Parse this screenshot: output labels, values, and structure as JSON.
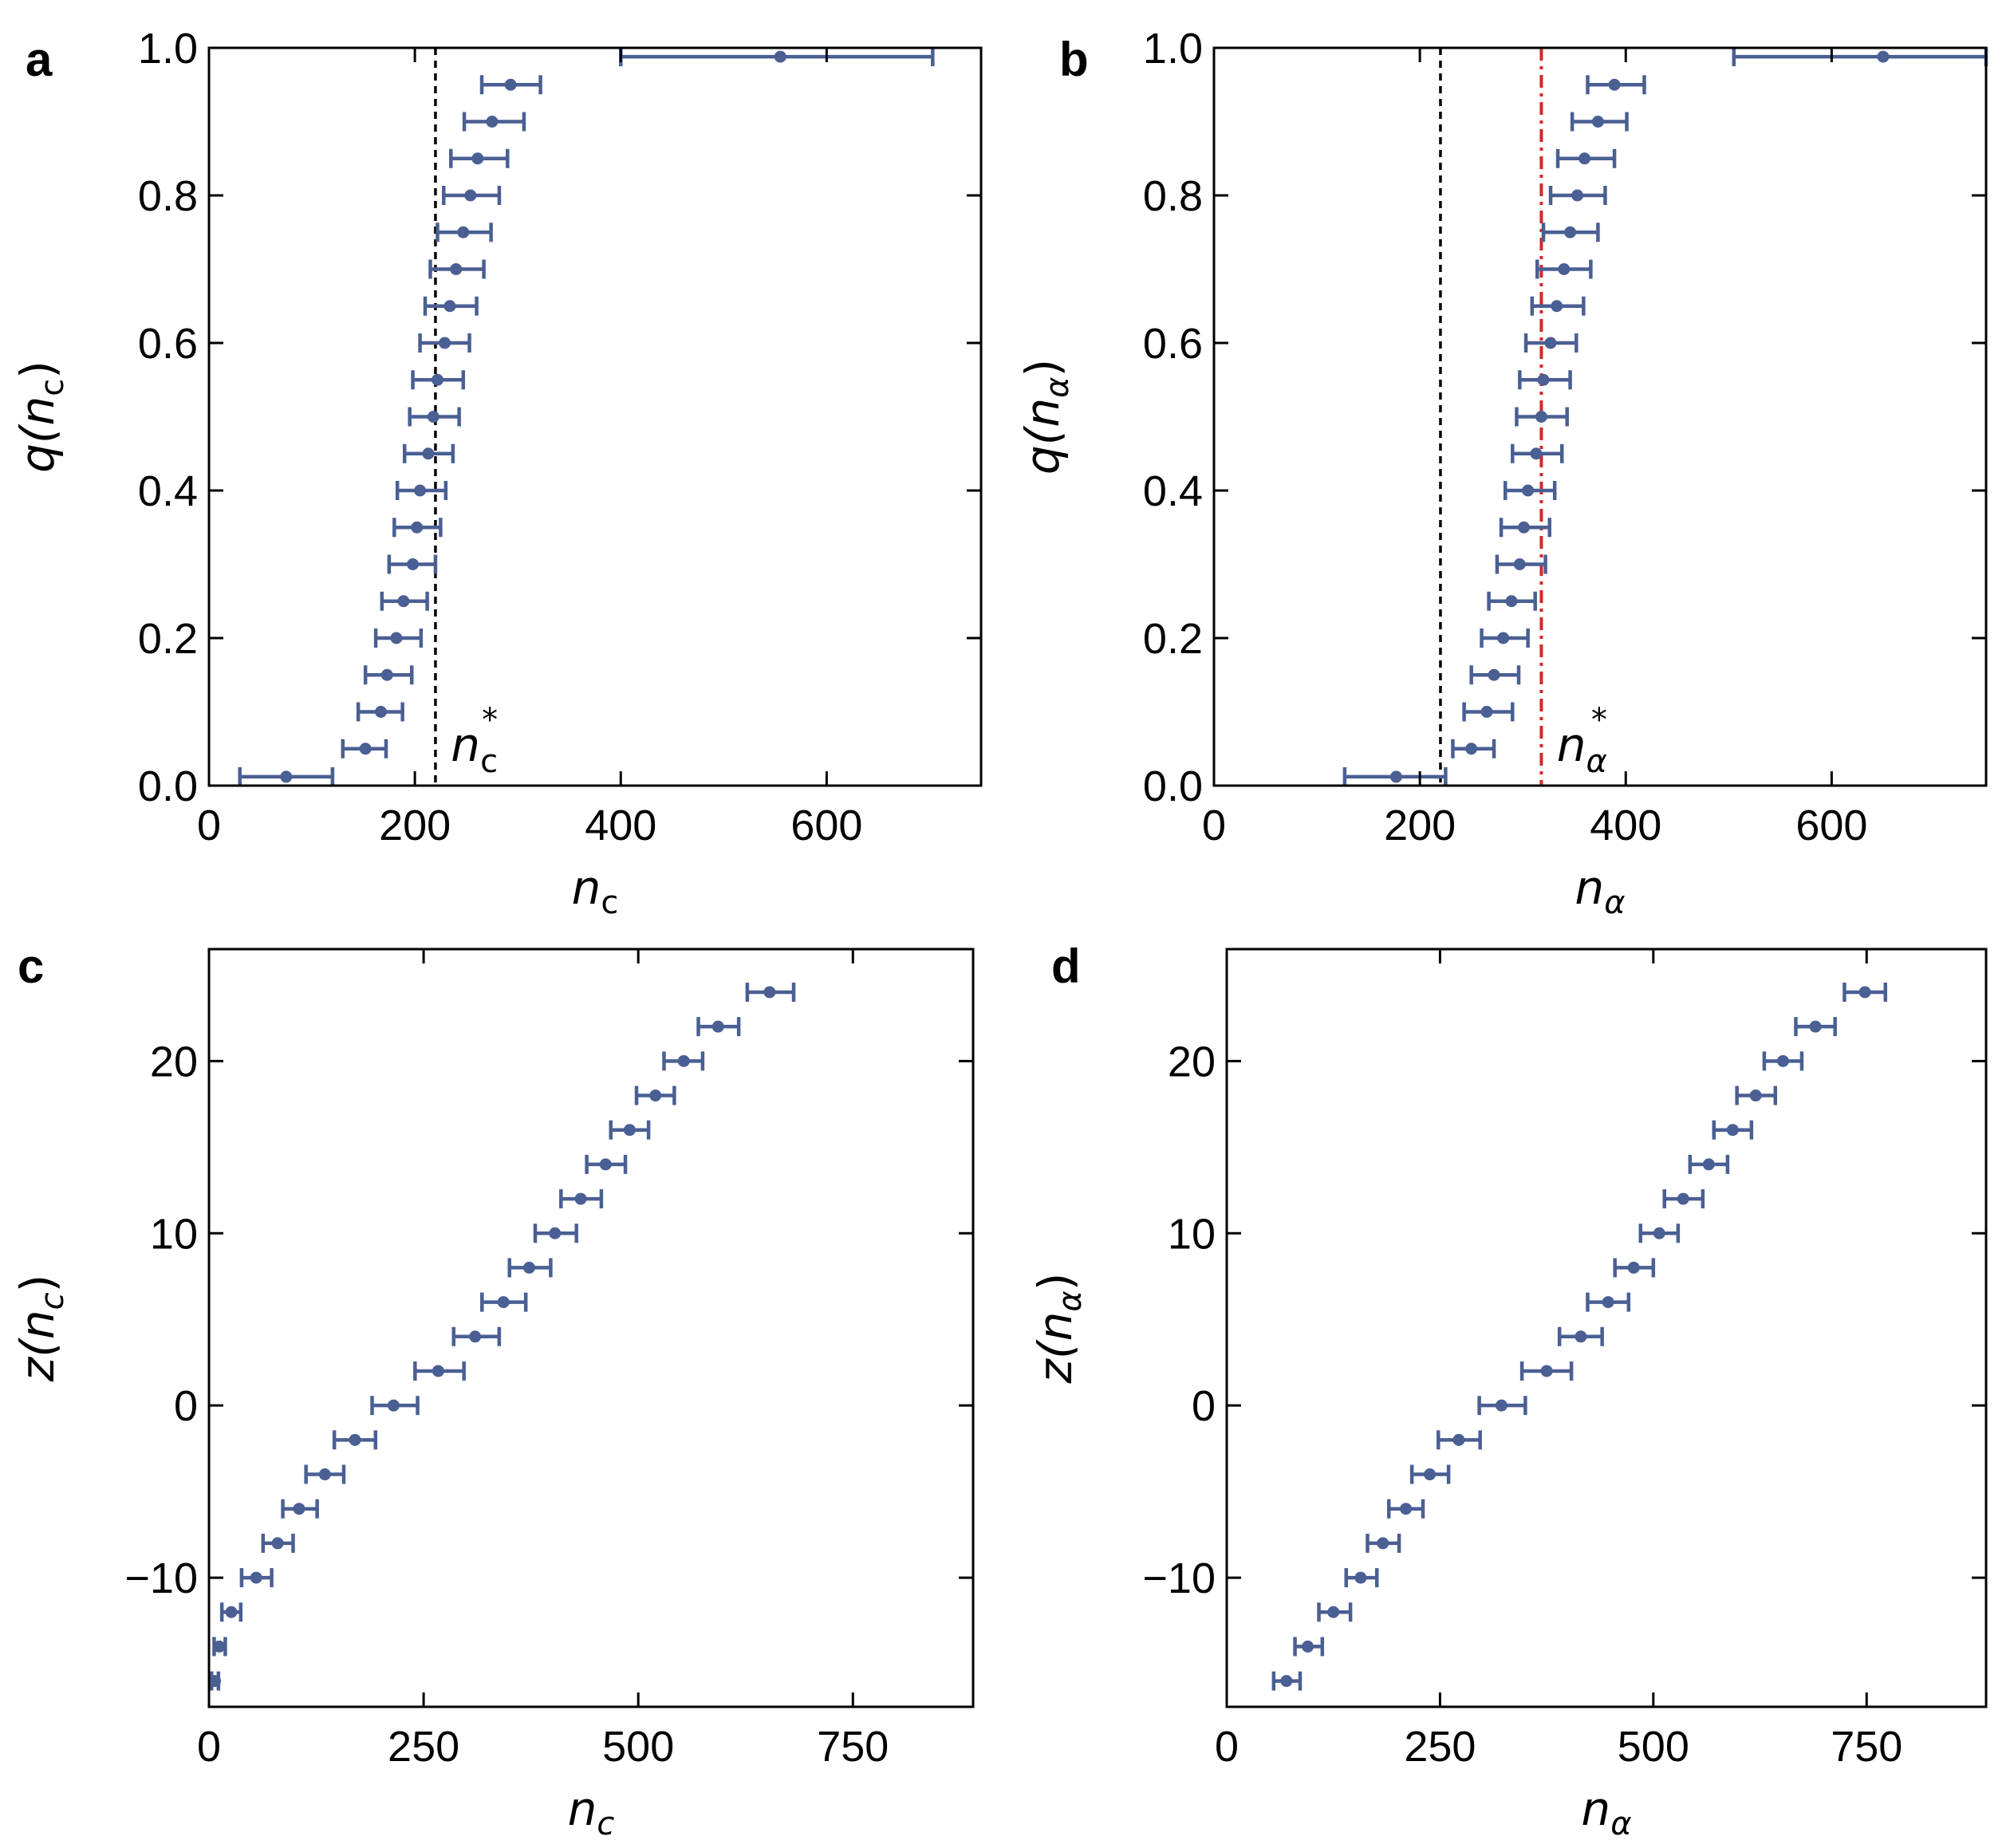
{
  "colors": {
    "marker": "#4a5f93",
    "ref_line": "#000000",
    "threshold_line": "#d62728"
  },
  "chart_data": [
    {
      "panel": "a",
      "type": "scatter",
      "xlabel": "n",
      "xlabel_sub": "c",
      "ylabel_prefix": "q(",
      "ylabel_var": "n",
      "ylabel_sub": "c",
      "ylabel_suffix": ")",
      "xlim": [
        0,
        750
      ],
      "ylim": [
        0,
        1.0
      ],
      "xticks": [
        0,
        200,
        400,
        600
      ],
      "xtick_labels": [
        "0",
        "200",
        "400",
        "600"
      ],
      "yticks": [
        0,
        0.2,
        0.4,
        0.6,
        0.8,
        1.0
      ],
      "ytick_labels": [
        "0.0",
        "0.2",
        "0.4",
        "0.6",
        "0.8",
        "1.0"
      ],
      "vlines": [
        {
          "x": 220,
          "style": "dashed",
          "color": "#000000"
        }
      ],
      "annotation": {
        "var": "n",
        "sub": "c",
        "sup": "*",
        "x": 235,
        "y": 0.055
      },
      "points": [
        {
          "x": 75,
          "y": 0.012,
          "xerr": [
            30,
            120
          ]
        },
        {
          "x": 152,
          "y": 0.05,
          "xerr": [
            130,
            172
          ]
        },
        {
          "x": 167,
          "y": 0.1,
          "xerr": [
            145,
            188
          ]
        },
        {
          "x": 173,
          "y": 0.15,
          "xerr": [
            152,
            197
          ]
        },
        {
          "x": 182,
          "y": 0.2,
          "xerr": [
            162,
            206
          ]
        },
        {
          "x": 189,
          "y": 0.25,
          "xerr": [
            168,
            212
          ]
        },
        {
          "x": 198,
          "y": 0.3,
          "xerr": [
            175,
            220
          ]
        },
        {
          "x": 202,
          "y": 0.35,
          "xerr": [
            180,
            225
          ]
        },
        {
          "x": 205,
          "y": 0.4,
          "xerr": [
            183,
            230
          ]
        },
        {
          "x": 213,
          "y": 0.45,
          "xerr": [
            190,
            237
          ]
        },
        {
          "x": 218,
          "y": 0.5,
          "xerr": [
            195,
            243
          ]
        },
        {
          "x": 222,
          "y": 0.55,
          "xerr": [
            198,
            247
          ]
        },
        {
          "x": 229,
          "y": 0.6,
          "xerr": [
            205,
            253
          ]
        },
        {
          "x": 234,
          "y": 0.65,
          "xerr": [
            210,
            260
          ]
        },
        {
          "x": 240,
          "y": 0.7,
          "xerr": [
            215,
            267
          ]
        },
        {
          "x": 247,
          "y": 0.75,
          "xerr": [
            222,
            274
          ]
        },
        {
          "x": 254,
          "y": 0.8,
          "xerr": [
            228,
            282
          ]
        },
        {
          "x": 261,
          "y": 0.85,
          "xerr": [
            235,
            290
          ]
        },
        {
          "x": 275,
          "y": 0.9,
          "xerr": [
            248,
            306
          ]
        },
        {
          "x": 293,
          "y": 0.95,
          "xerr": [
            265,
            322
          ]
        },
        {
          "x": 555,
          "y": 0.988,
          "xerr": [
            400,
            703
          ]
        }
      ]
    },
    {
      "panel": "b",
      "type": "scatter",
      "xlabel": "n",
      "xlabel_sub": "α",
      "ylabel_prefix": "q(",
      "ylabel_var": "n",
      "ylabel_sub": "α",
      "ylabel_suffix": ")",
      "xlim": [
        0,
        750
      ],
      "ylim": [
        0,
        1.0
      ],
      "xticks": [
        0,
        200,
        400,
        600
      ],
      "xtick_labels": [
        "0",
        "200",
        "400",
        "600"
      ],
      "yticks": [
        0,
        0.2,
        0.4,
        0.6,
        0.8,
        1.0
      ],
      "ytick_labels": [
        "0.0",
        "0.2",
        "0.4",
        "0.6",
        "0.8",
        "1.0"
      ],
      "vlines": [
        {
          "x": 220,
          "style": "dashed",
          "color": "#000000"
        },
        {
          "x": 318,
          "style": "dashdot",
          "color": "#d62728"
        }
      ],
      "annotation": {
        "var": "n",
        "sub": "α",
        "sup": "*",
        "x": 333,
        "y": 0.055
      },
      "points": [
        {
          "x": 177,
          "y": 0.012,
          "xerr": [
            127,
            225
          ]
        },
        {
          "x": 250,
          "y": 0.05,
          "xerr": [
            232,
            272
          ]
        },
        {
          "x": 265,
          "y": 0.1,
          "xerr": [
            243,
            290
          ]
        },
        {
          "x": 272,
          "y": 0.15,
          "xerr": [
            250,
            296
          ]
        },
        {
          "x": 281,
          "y": 0.2,
          "xerr": [
            260,
            305
          ]
        },
        {
          "x": 289,
          "y": 0.25,
          "xerr": [
            267,
            312
          ]
        },
        {
          "x": 297,
          "y": 0.3,
          "xerr": [
            275,
            322
          ]
        },
        {
          "x": 301,
          "y": 0.35,
          "xerr": [
            279,
            326
          ]
        },
        {
          "x": 305,
          "y": 0.4,
          "xerr": [
            283,
            331
          ]
        },
        {
          "x": 313,
          "y": 0.45,
          "xerr": [
            290,
            338
          ]
        },
        {
          "x": 318,
          "y": 0.5,
          "xerr": [
            294,
            343
          ]
        },
        {
          "x": 320,
          "y": 0.55,
          "xerr": [
            297,
            346
          ]
        },
        {
          "x": 327,
          "y": 0.6,
          "xerr": [
            303,
            352
          ]
        },
        {
          "x": 333,
          "y": 0.65,
          "xerr": [
            309,
            359
          ]
        },
        {
          "x": 340,
          "y": 0.7,
          "xerr": [
            314,
            366
          ]
        },
        {
          "x": 346,
          "y": 0.75,
          "xerr": [
            320,
            373
          ]
        },
        {
          "x": 353,
          "y": 0.8,
          "xerr": [
            327,
            380
          ]
        },
        {
          "x": 360,
          "y": 0.85,
          "xerr": [
            334,
            389
          ]
        },
        {
          "x": 373,
          "y": 0.9,
          "xerr": [
            348,
            401
          ]
        },
        {
          "x": 389,
          "y": 0.95,
          "xerr": [
            363,
            418
          ]
        },
        {
          "x": 650,
          "y": 0.988,
          "xerr": [
            505,
            750
          ]
        }
      ]
    },
    {
      "panel": "c",
      "type": "scatter",
      "xlabel": "n",
      "xlabel_sub": "c",
      "ylabel_prefix": "z(",
      "ylabel_var": "n",
      "ylabel_sub": "c",
      "ylabel_suffix": ")",
      "xlim": [
        0,
        890
      ],
      "ylim": [
        -17.5,
        26.5
      ],
      "xticks": [
        0,
        250,
        500,
        750
      ],
      "xtick_labels": [
        "0",
        "250",
        "500",
        "750"
      ],
      "yticks": [
        -10,
        0,
        10,
        20
      ],
      "ytick_labels": [
        "−10",
        "0",
        "10",
        "20"
      ],
      "vlines": [],
      "points": [
        {
          "x": 7,
          "y": -16,
          "xerr": [
            3,
            11
          ]
        },
        {
          "x": 12,
          "y": -14,
          "xerr": [
            6,
            19
          ]
        },
        {
          "x": 26,
          "y": -12,
          "xerr": [
            15,
            37
          ]
        },
        {
          "x": 55,
          "y": -10,
          "xerr": [
            38,
            73
          ]
        },
        {
          "x": 80,
          "y": -8,
          "xerr": [
            63,
            98
          ]
        },
        {
          "x": 105,
          "y": -6,
          "xerr": [
            86,
            126
          ]
        },
        {
          "x": 135,
          "y": -4,
          "xerr": [
            113,
            157
          ]
        },
        {
          "x": 170,
          "y": -2,
          "xerr": [
            146,
            194
          ]
        },
        {
          "x": 215,
          "y": 0,
          "xerr": [
            190,
            243
          ]
        },
        {
          "x": 267,
          "y": 2,
          "xerr": [
            240,
            297
          ]
        },
        {
          "x": 310,
          "y": 4,
          "xerr": [
            285,
            338
          ]
        },
        {
          "x": 343,
          "y": 6,
          "xerr": [
            318,
            369
          ]
        },
        {
          "x": 373,
          "y": 8,
          "xerr": [
            350,
            398
          ]
        },
        {
          "x": 403,
          "y": 10,
          "xerr": [
            380,
            428
          ]
        },
        {
          "x": 433,
          "y": 12,
          "xerr": [
            410,
            457
          ]
        },
        {
          "x": 462,
          "y": 14,
          "xerr": [
            440,
            485
          ]
        },
        {
          "x": 490,
          "y": 16,
          "xerr": [
            468,
            512
          ]
        },
        {
          "x": 520,
          "y": 18,
          "xerr": [
            498,
            542
          ]
        },
        {
          "x": 553,
          "y": 20,
          "xerr": [
            530,
            575
          ]
        },
        {
          "x": 593,
          "y": 22,
          "xerr": [
            570,
            617
          ]
        },
        {
          "x": 653,
          "y": 24,
          "xerr": [
            627,
            681
          ]
        }
      ]
    },
    {
      "panel": "d",
      "type": "scatter",
      "xlabel": "n",
      "xlabel_sub": "α",
      "ylabel_prefix": "z(",
      "ylabel_var": "n",
      "ylabel_sub": "α",
      "ylabel_suffix": ")",
      "xlim": [
        0,
        890
      ],
      "ylim": [
        -17.5,
        26.5
      ],
      "xticks": [
        0,
        250,
        500,
        750
      ],
      "xtick_labels": [
        "0",
        "250",
        "500",
        "750"
      ],
      "yticks": [
        -10,
        0,
        10,
        20
      ],
      "ytick_labels": [
        "−10",
        "0",
        "10",
        "20"
      ],
      "vlines": [],
      "points": [
        {
          "x": 70,
          "y": -16,
          "xerr": [
            55,
            86
          ]
        },
        {
          "x": 95,
          "y": -14,
          "xerr": [
            80,
            112
          ]
        },
        {
          "x": 125,
          "y": -12,
          "xerr": [
            108,
            145
          ]
        },
        {
          "x": 157,
          "y": -10,
          "xerr": [
            140,
            176
          ]
        },
        {
          "x": 183,
          "y": -8,
          "xerr": [
            165,
            202
          ]
        },
        {
          "x": 210,
          "y": -6,
          "xerr": [
            190,
            230
          ]
        },
        {
          "x": 238,
          "y": -4,
          "xerr": [
            217,
            260
          ]
        },
        {
          "x": 272,
          "y": -2,
          "xerr": [
            248,
            297
          ]
        },
        {
          "x": 322,
          "y": 0,
          "xerr": [
            296,
            350
          ]
        },
        {
          "x": 375,
          "y": 2,
          "xerr": [
            346,
            404
          ]
        },
        {
          "x": 415,
          "y": 4,
          "xerr": [
            390,
            440
          ]
        },
        {
          "x": 447,
          "y": 6,
          "xerr": [
            423,
            471
          ]
        },
        {
          "x": 477,
          "y": 8,
          "xerr": [
            455,
            500
          ]
        },
        {
          "x": 507,
          "y": 10,
          "xerr": [
            485,
            529
          ]
        },
        {
          "x": 535,
          "y": 12,
          "xerr": [
            513,
            558
          ]
        },
        {
          "x": 565,
          "y": 14,
          "xerr": [
            543,
            587
          ]
        },
        {
          "x": 593,
          "y": 16,
          "xerr": [
            571,
            615
          ]
        },
        {
          "x": 620,
          "y": 18,
          "xerr": [
            598,
            643
          ]
        },
        {
          "x": 652,
          "y": 20,
          "xerr": [
            630,
            674
          ]
        },
        {
          "x": 690,
          "y": 22,
          "xerr": [
            667,
            713
          ]
        },
        {
          "x": 748,
          "y": 24,
          "xerr": [
            724,
            772
          ]
        }
      ]
    }
  ]
}
